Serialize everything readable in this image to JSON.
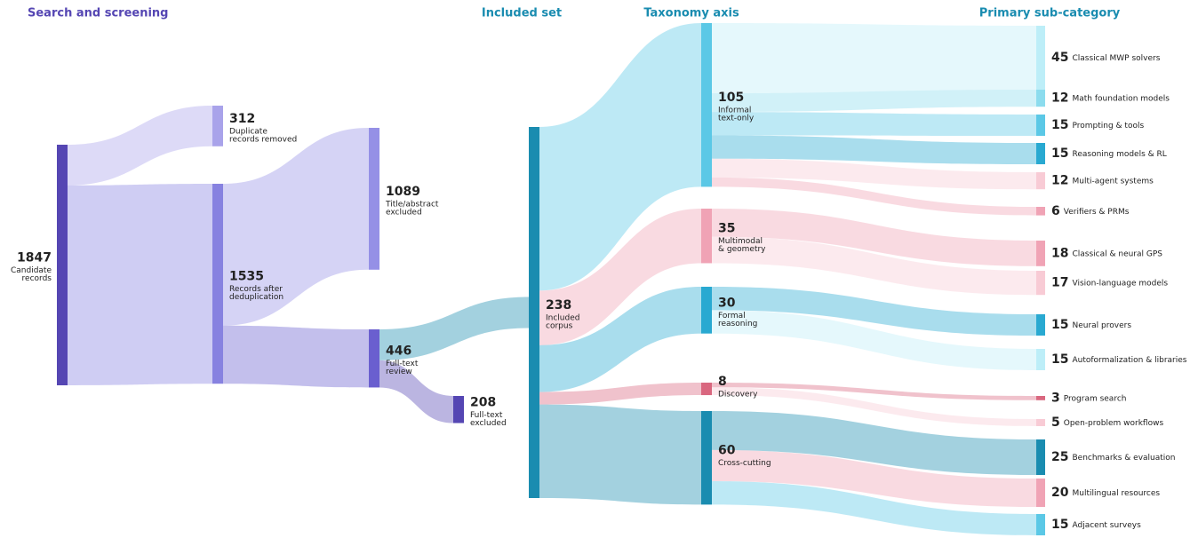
{
  "chart_data": {
    "type": "sankey",
    "headers": [
      {
        "label": "Search and screening",
        "color": "#5546b3"
      },
      {
        "label": "Included set",
        "color": "#1a8cb0"
      },
      {
        "label": "Taxonomy axis",
        "color": "#1a8cb0"
      },
      {
        "label": "Primary sub-category",
        "color": "#1a8cb0"
      }
    ],
    "nodes": [
      {
        "value": 1847,
        "label": [
          "Candidate",
          "records"
        ],
        "color": "#5546b3"
      },
      {
        "value": 312,
        "label": [
          "Duplicate",
          "records removed"
        ],
        "color": "#a9a3ea"
      },
      {
        "value": 1535,
        "label": [
          "Records after",
          "deduplication"
        ],
        "color": "#8782e0"
      },
      {
        "value": 1089,
        "label": [
          "Title/abstract",
          "excluded"
        ],
        "color": "#9590e6"
      },
      {
        "value": 446,
        "label": [
          "Full-text",
          "review"
        ],
        "color": "#6a5fcf"
      },
      {
        "value": 208,
        "label": [
          "Full-text",
          "excluded"
        ],
        "color": "#5546b3"
      },
      {
        "value": 238,
        "label": [
          "Included",
          "corpus"
        ],
        "color": "#1a8cb0"
      },
      {
        "value": 105,
        "label": [
          "Informal",
          "text-only"
        ],
        "color": "#5bc8e6"
      },
      {
        "value": 35,
        "label": [
          "Multimodal",
          "& geometry"
        ],
        "color": "#f0a3b5"
      },
      {
        "value": 30,
        "label": [
          "Formal",
          "reasoning"
        ],
        "color": "#29a9d1"
      },
      {
        "value": 8,
        "label": [
          "Discovery"
        ],
        "color": "#d9677f"
      },
      {
        "value": 60,
        "label": [
          "Cross-cutting"
        ],
        "color": "#1a8cb0"
      },
      {
        "value": 45,
        "label": [
          "Classical MWP solvers"
        ],
        "color": "#bdeef8"
      },
      {
        "value": 12,
        "label": [
          "Math foundation models"
        ],
        "color": "#8cdcee"
      },
      {
        "value": 15,
        "label": [
          "Prompting & tools"
        ],
        "color": "#5bc8e6"
      },
      {
        "value": 15,
        "label": [
          "Reasoning models & RL"
        ],
        "color": "#29a9d1"
      },
      {
        "value": 12,
        "label": [
          "Multi-agent systems"
        ],
        "color": "#f8cbd5"
      },
      {
        "value": 6,
        "label": [
          "Verifiers & PRMs"
        ],
        "color": "#f0a3b5"
      },
      {
        "value": 18,
        "label": [
          "Classical & neural GPS"
        ],
        "color": "#f0a3b5"
      },
      {
        "value": 17,
        "label": [
          "Vision-language models"
        ],
        "color": "#f8cbd5"
      },
      {
        "value": 15,
        "label": [
          "Neural provers"
        ],
        "color": "#29a9d1"
      },
      {
        "value": 15,
        "label": [
          "Autoformalization & libraries"
        ],
        "color": "#bdeef8"
      },
      {
        "value": 3,
        "label": [
          "Program search"
        ],
        "color": "#d9677f"
      },
      {
        "value": 5,
        "label": [
          "Open-problem workflows"
        ],
        "color": "#f8cbd5"
      },
      {
        "value": 25,
        "label": [
          "Benchmarks & evaluation"
        ],
        "color": "#1a8cb0"
      },
      {
        "value": 20,
        "label": [
          "Multilingual resources"
        ],
        "color": "#f0a3b5"
      },
      {
        "value": 15,
        "label": [
          "Adjacent surveys"
        ],
        "color": "#5bc8e6"
      }
    ],
    "links": [
      {
        "source": 0,
        "target": 1,
        "value": 312
      },
      {
        "source": 0,
        "target": 2,
        "value": 1535
      },
      {
        "source": 2,
        "target": 3,
        "value": 1089
      },
      {
        "source": 2,
        "target": 4,
        "value": 446
      },
      {
        "source": 4,
        "target": 6,
        "value": 238
      },
      {
        "source": 4,
        "target": 5,
        "value": 208
      },
      {
        "source": 6,
        "target": 7,
        "value": 105
      },
      {
        "source": 6,
        "target": 8,
        "value": 35
      },
      {
        "source": 6,
        "target": 9,
        "value": 30
      },
      {
        "source": 6,
        "target": 10,
        "value": 8
      },
      {
        "source": 6,
        "target": 11,
        "value": 60
      },
      {
        "source": 7,
        "target": 12,
        "value": 45
      },
      {
        "source": 7,
        "target": 13,
        "value": 12
      },
      {
        "source": 7,
        "target": 14,
        "value": 15
      },
      {
        "source": 7,
        "target": 15,
        "value": 15
      },
      {
        "source": 7,
        "target": 16,
        "value": 12
      },
      {
        "source": 7,
        "target": 17,
        "value": 6
      },
      {
        "source": 8,
        "target": 18,
        "value": 18
      },
      {
        "source": 8,
        "target": 19,
        "value": 17
      },
      {
        "source": 9,
        "target": 20,
        "value": 15
      },
      {
        "source": 9,
        "target": 21,
        "value": 15
      },
      {
        "source": 10,
        "target": 22,
        "value": 3
      },
      {
        "source": 10,
        "target": 23,
        "value": 5
      },
      {
        "source": 11,
        "target": 24,
        "value": 25
      },
      {
        "source": 11,
        "target": 25,
        "value": 20
      },
      {
        "source": 11,
        "target": 26,
        "value": 15
      }
    ]
  }
}
